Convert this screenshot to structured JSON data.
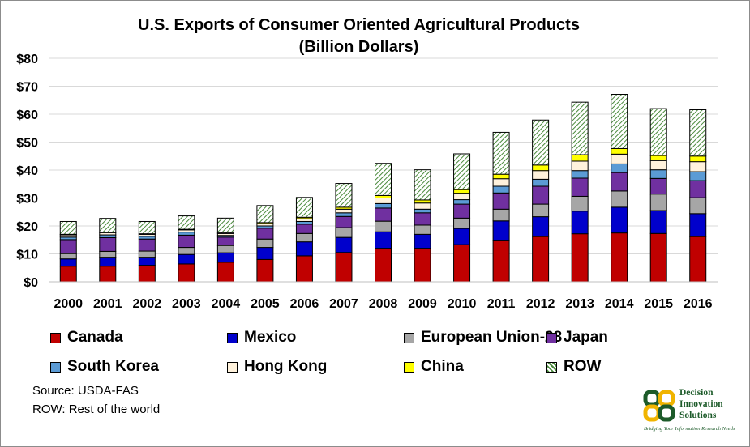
{
  "chart_data": {
    "type": "bar",
    "stacked": true,
    "title": "U.S. Exports of Consumer Oriented Agricultural Products",
    "subtitle": "(Billion Dollars)",
    "xlabel": "",
    "ylabel": "",
    "ylim": [
      0,
      80
    ],
    "yticks": [
      "$0",
      "$10",
      "$20",
      "$30",
      "$40",
      "$50",
      "$60",
      "$70",
      "$80"
    ],
    "grid": true,
    "legend_position": "bottom",
    "categories": [
      "2000",
      "2001",
      "2002",
      "2003",
      "2004",
      "2005",
      "2006",
      "2007",
      "2008",
      "2009",
      "2010",
      "2011",
      "2012",
      "2013",
      "2014",
      "2015",
      "2016"
    ],
    "series": [
      {
        "name": "Canada",
        "color": "#c00000",
        "pattern": "solid",
        "values": [
          5.6,
          5.6,
          5.9,
          6.4,
          7.0,
          8.0,
          9.3,
          10.5,
          12.0,
          12.0,
          13.3,
          14.9,
          16.2,
          17.2,
          17.5,
          17.3,
          16.2
        ]
      },
      {
        "name": "Mexico",
        "color": "#0000cc",
        "pattern": "solid",
        "values": [
          2.6,
          3.2,
          2.9,
          3.4,
          3.4,
          4.3,
          5.0,
          5.4,
          5.9,
          5.0,
          5.8,
          6.9,
          7.1,
          8.1,
          9.2,
          8.2,
          8.2
        ]
      },
      {
        "name": "European Union-28",
        "color": "#a6a6a6",
        "pattern": "solid",
        "values": [
          1.9,
          2.1,
          2.2,
          2.5,
          2.6,
          3.0,
          3.0,
          3.5,
          3.8,
          3.3,
          3.7,
          4.2,
          4.5,
          5.3,
          5.8,
          5.9,
          5.7
        ]
      },
      {
        "name": "Japan",
        "color": "#7030a0",
        "pattern": "solid",
        "values": [
          5.0,
          4.9,
          4.3,
          4.4,
          3.0,
          3.9,
          3.3,
          4.0,
          4.7,
          4.4,
          5.0,
          5.8,
          6.4,
          6.5,
          6.6,
          5.6,
          6.1
        ]
      },
      {
        "name": "South Korea",
        "color": "#5b9bd5",
        "pattern": "solid",
        "values": [
          0.9,
          1.0,
          1.0,
          1.1,
          0.6,
          0.8,
          1.0,
          1.3,
          1.6,
          1.3,
          1.6,
          2.4,
          2.5,
          2.7,
          3.1,
          3.1,
          3.2
        ]
      },
      {
        "name": "Hong Kong",
        "color": "#fff2dc",
        "pattern": "solid",
        "values": [
          0.8,
          0.8,
          0.7,
          0.8,
          0.7,
          0.8,
          1.0,
          1.3,
          2.0,
          2.2,
          2.3,
          2.7,
          3.1,
          3.4,
          3.5,
          3.3,
          3.6
        ]
      },
      {
        "name": "China",
        "color": "#ffff00",
        "pattern": "solid",
        "values": [
          0.2,
          0.2,
          0.2,
          0.2,
          0.2,
          0.4,
          0.5,
          0.7,
          0.9,
          1.1,
          1.3,
          1.6,
          2.0,
          2.3,
          2.0,
          1.8,
          2.0
        ]
      },
      {
        "name": "ROW",
        "color": "#4a8a3c",
        "pattern": "hatch",
        "values": [
          4.6,
          4.9,
          4.4,
          4.8,
          5.3,
          6.1,
          7.1,
          8.5,
          11.5,
          10.8,
          12.8,
          15.0,
          16.1,
          18.8,
          19.4,
          16.8,
          16.6
        ]
      }
    ]
  },
  "source_text": "Source: USDA-FAS",
  "row_note": "ROW: Rest of the world",
  "logo": {
    "line1": "Decision",
    "line2": "Innovation",
    "line3": "Solutions",
    "tagline": "Bridging Your Information Research Needs"
  }
}
